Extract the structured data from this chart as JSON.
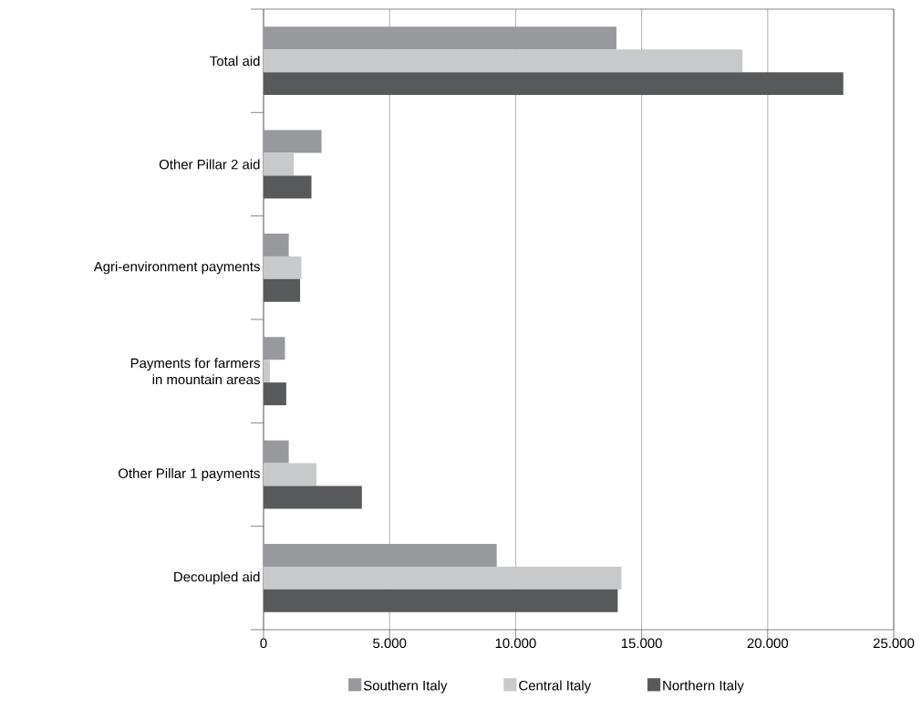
{
  "chart_data": {
    "type": "bar",
    "orientation": "horizontal",
    "categories": [
      "Total aid",
      "Other Pillar 2 aid",
      "Agri-environment payments",
      "Payments for farmers in mountain areas",
      "Other Pillar 1 payments",
      "Decoupled aid"
    ],
    "series": [
      {
        "name": "Southern Italy",
        "color": "#98999d",
        "values": [
          14000,
          2300,
          1000,
          850,
          1000,
          9250
        ]
      },
      {
        "name": "Central Italy",
        "color": "#c8c9cb",
        "values": [
          19000,
          1200,
          1500,
          250,
          2100,
          14200
        ]
      },
      {
        "name": "Northern Italy",
        "color": "#58595b",
        "values": [
          23000,
          1900,
          1450,
          900,
          3900,
          14050
        ]
      }
    ],
    "xlim": [
      0,
      25000
    ],
    "xticks": [
      0,
      {
        "value": 5000,
        "label": "5.000"
      },
      {
        "value": 10000,
        "label": "10.000"
      },
      {
        "value": 15000,
        "label": "15.000"
      },
      {
        "value": 20000,
        "label": "20.000"
      },
      {
        "value": 25000,
        "label": "25.000"
      }
    ],
    "grid": "x",
    "legend": "bottom"
  }
}
